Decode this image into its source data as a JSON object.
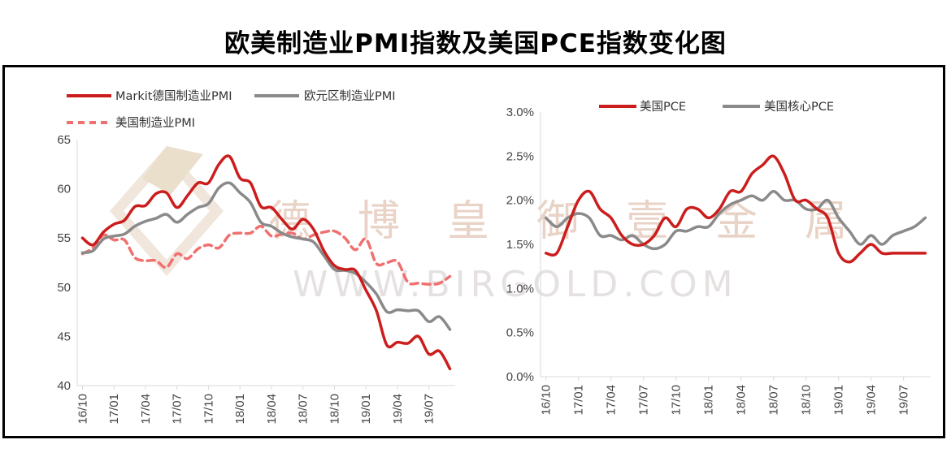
{
  "title": "欧美制造业PMI指数及美国PCE指数变化图",
  "watermark": {
    "chars": [
      "德",
      "博",
      "皇",
      "御",
      "壹",
      "金",
      "属"
    ],
    "english": "WWW.BIRGOLD.COM"
  },
  "colors": {
    "red": "#cc1d1d",
    "gray": "#8a8a8a",
    "dashed_red": "#f07070"
  },
  "chart_data": [
    {
      "type": "line",
      "x_ticks": [
        "16/10",
        "17/01",
        "17/04",
        "17/07",
        "17/10",
        "18/01",
        "18/04",
        "18/07",
        "18/10",
        "19/01",
        "19/04",
        "19/07"
      ],
      "ylim": [
        40,
        65
      ],
      "y_ticks": [
        "40",
        "45",
        "50",
        "55",
        "60",
        "65"
      ],
      "legend": [
        "Markit德国制造业PMI",
        "欧元区制造业PMI",
        "美国制造业PMI"
      ],
      "series": [
        {
          "name": "Markit德国制造业PMI",
          "style": "solid",
          "color": "#cc1d1d",
          "values": [
            55.0,
            54.3,
            55.6,
            56.4,
            56.8,
            58.2,
            58.3,
            59.5,
            59.6,
            58.1,
            59.3,
            60.6,
            60.6,
            62.5,
            63.3,
            61.1,
            60.6,
            58.2,
            58.1,
            56.9,
            55.9,
            56.9,
            55.9,
            53.7,
            52.2,
            51.8,
            51.7,
            49.7,
            47.6,
            44.1,
            44.4,
            44.3,
            45.0,
            43.2,
            43.5,
            41.7
          ]
        },
        {
          "name": "欧元区制造业PMI",
          "style": "solid",
          "color": "#8a8a8a",
          "values": [
            53.5,
            53.7,
            54.9,
            55.2,
            55.4,
            56.2,
            56.7,
            57.0,
            57.4,
            56.6,
            57.4,
            58.1,
            58.5,
            60.1,
            60.6,
            59.6,
            58.6,
            56.6,
            56.2,
            55.5,
            55.1,
            54.9,
            54.6,
            53.2,
            51.8,
            51.7,
            51.4,
            50.5,
            49.3,
            47.5,
            47.7,
            47.6,
            47.6,
            46.5,
            47.0,
            45.7
          ]
        },
        {
          "name": "美国制造业PMI",
          "style": "dashed",
          "color": "#f07070",
          "values": [
            53.4,
            54.0,
            55.3,
            54.8,
            54.8,
            53.0,
            52.7,
            52.7,
            52.0,
            53.4,
            52.9,
            53.9,
            54.3,
            54.0,
            55.3,
            55.5,
            55.5,
            56.2,
            55.2,
            55.4,
            55.5,
            54.9,
            55.3,
            55.6,
            55.7,
            55.0,
            53.8,
            54.9,
            52.4,
            52.5,
            52.6,
            50.5,
            50.4,
            50.3,
            50.4,
            51.1
          ]
        }
      ]
    },
    {
      "type": "line",
      "x_ticks": [
        "16/10",
        "17/01",
        "17/04",
        "17/07",
        "17/10",
        "18/01",
        "18/04",
        "18/07",
        "18/10",
        "19/01",
        "19/04",
        "19/07"
      ],
      "ylim": [
        0,
        3.0
      ],
      "y_ticks": [
        "0.0%",
        "0.5%",
        "1.0%",
        "1.5%",
        "2.0%",
        "2.5%",
        "3.0%"
      ],
      "legend": [
        "美国PCE",
        "美国核心PCE"
      ],
      "series": [
        {
          "name": "美国PCE",
          "style": "solid",
          "color": "#cc1d1d",
          "values": [
            1.4,
            1.4,
            1.7,
            2.0,
            2.1,
            1.9,
            1.8,
            1.6,
            1.5,
            1.5,
            1.6,
            1.8,
            1.7,
            1.9,
            1.9,
            1.8,
            1.9,
            2.1,
            2.1,
            2.3,
            2.4,
            2.5,
            2.3,
            2.0,
            2.0,
            1.9,
            1.8,
            1.4,
            1.3,
            1.4,
            1.5,
            1.4,
            1.4,
            1.4,
            1.4,
            1.4
          ]
        },
        {
          "name": "美国核心PCE",
          "style": "solid",
          "color": "#8a8a8a",
          "values": [
            1.8,
            1.7,
            1.8,
            1.85,
            1.8,
            1.6,
            1.6,
            1.55,
            1.6,
            1.5,
            1.45,
            1.5,
            1.65,
            1.65,
            1.7,
            1.7,
            1.85,
            1.95,
            2.0,
            2.05,
            2.0,
            2.1,
            2.0,
            2.0,
            1.9,
            1.9,
            2.0,
            1.8,
            1.65,
            1.5,
            1.6,
            1.5,
            1.6,
            1.65,
            1.7,
            1.8
          ]
        }
      ]
    }
  ]
}
